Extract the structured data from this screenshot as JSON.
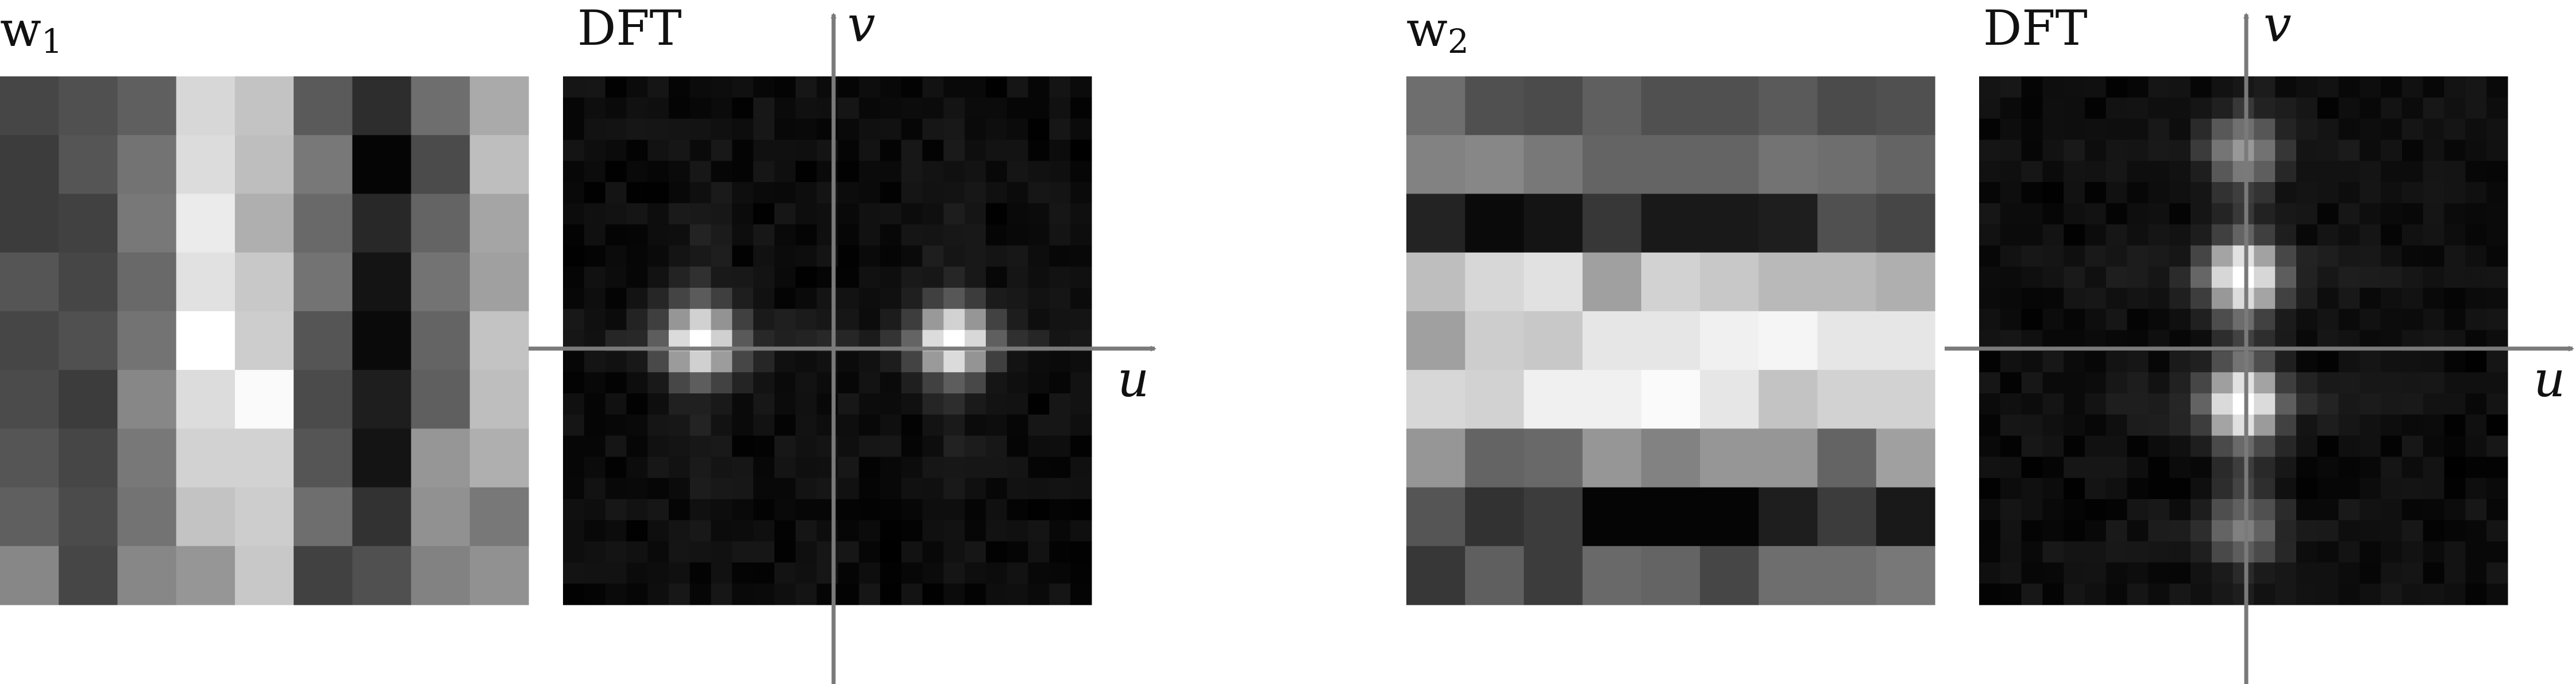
{
  "left": {
    "kernel_label": "w",
    "kernel_subscript": "1",
    "dft_label": "DFT",
    "u_label": "u",
    "v_label": "v",
    "kernel_grid": [
      [
        70,
        80,
        95,
        215,
        195,
        90,
        45,
        110,
        170
      ],
      [
        60,
        85,
        115,
        220,
        190,
        120,
        5,
        75,
        190
      ],
      [
        60,
        65,
        120,
        235,
        175,
        105,
        40,
        100,
        165
      ],
      [
        85,
        70,
        105,
        225,
        200,
        115,
        20,
        115,
        160
      ],
      [
        70,
        80,
        115,
        255,
        205,
        85,
        10,
        100,
        195
      ],
      [
        75,
        60,
        135,
        220,
        250,
        75,
        30,
        95,
        190
      ],
      [
        85,
        70,
        120,
        210,
        210,
        85,
        20,
        150,
        175
      ],
      [
        95,
        75,
        115,
        195,
        205,
        110,
        50,
        145,
        120
      ],
      [
        135,
        70,
        135,
        150,
        200,
        65,
        80,
        130,
        145
      ]
    ],
    "spectrum_peaks": [
      {
        "u": -6,
        "v": 0,
        "amplitude": 1.0
      },
      {
        "u": 6,
        "v": 0,
        "amplitude": 1.0
      }
    ],
    "spectrum_size": 25
  },
  "right": {
    "kernel_label": "w",
    "kernel_subscript": "2",
    "dft_label": "DFT",
    "u_label": "u",
    "v_label": "v",
    "kernel_grid": [
      [
        110,
        80,
        75,
        95,
        80,
        80,
        90,
        75,
        80
      ],
      [
        130,
        135,
        120,
        100,
        100,
        100,
        115,
        110,
        100
      ],
      [
        35,
        10,
        20,
        55,
        25,
        25,
        30,
        80,
        70
      ],
      [
        190,
        215,
        225,
        160,
        210,
        200,
        185,
        185,
        175
      ],
      [
        160,
        205,
        200,
        230,
        230,
        240,
        245,
        230,
        230
      ],
      [
        215,
        210,
        240,
        240,
        250,
        230,
        195,
        210,
        210
      ],
      [
        150,
        100,
        105,
        150,
        130,
        150,
        150,
        100,
        160
      ],
      [
        85,
        50,
        60,
        5,
        5,
        5,
        30,
        60,
        25
      ],
      [
        55,
        95,
        60,
        105,
        100,
        70,
        110,
        110,
        120
      ]
    ],
    "spectrum_peaks": [
      {
        "u": 0,
        "v": -9,
        "amplitude": 0.45
      },
      {
        "u": 0,
        "v": -3,
        "amplitude": 1.0
      },
      {
        "u": 0,
        "v": 3,
        "amplitude": 1.0
      },
      {
        "u": 0,
        "v": 9,
        "amplitude": 0.35
      }
    ],
    "spectrum_size": 25
  }
}
